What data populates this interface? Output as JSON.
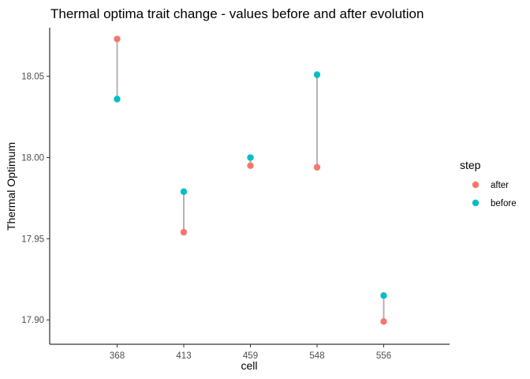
{
  "chart_data": {
    "type": "scatter",
    "title": "Thermal optima trait change - values before and after evolution",
    "xlabel": "cell",
    "ylabel": "Thermal Optimum",
    "categories": [
      "368",
      "413",
      "459",
      "548",
      "556"
    ],
    "ylim": [
      17.885,
      18.08
    ],
    "yticks": [
      "17.90",
      "17.95",
      "18.00",
      "18.05"
    ],
    "grid": false,
    "legend": {
      "title": "step",
      "position": "right"
    },
    "series": [
      {
        "name": "after",
        "color": "#F8766D",
        "values": [
          18.073,
          17.954,
          17.995,
          17.994,
          17.899
        ]
      },
      {
        "name": "before",
        "color": "#00BFC4",
        "values": [
          18.036,
          17.979,
          18.0,
          18.051,
          17.915
        ]
      }
    ],
    "segment_color": "#b3b3b3"
  }
}
